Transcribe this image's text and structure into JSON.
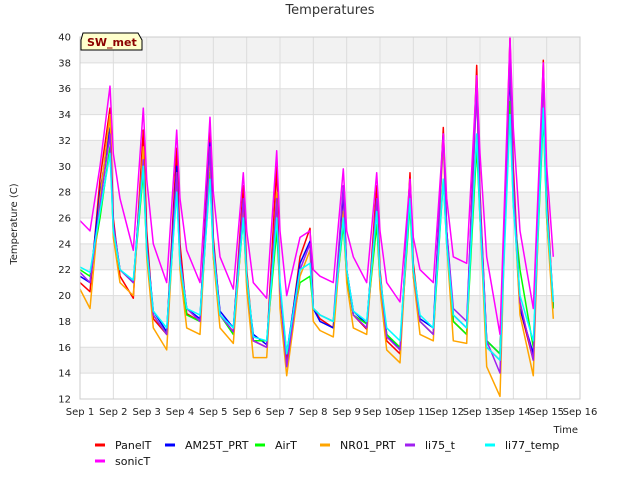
{
  "chart_data": {
    "type": "line",
    "title": "Temperatures",
    "xlabel": "Time",
    "ylabel": "Temperature (C)",
    "badge": "SW_met",
    "xlim": [
      1,
      16
    ],
    "ylim": [
      12,
      40
    ],
    "x_ticks": [
      {
        "value": 1,
        "label": "Sep 1"
      },
      {
        "value": 2,
        "label": "Sep 2"
      },
      {
        "value": 3,
        "label": "Sep 3"
      },
      {
        "value": 4,
        "label": "Sep 4"
      },
      {
        "value": 5,
        "label": "Sep 5"
      },
      {
        "value": 6,
        "label": "Sep 6"
      },
      {
        "value": 7,
        "label": "Sep 7"
      },
      {
        "value": 8,
        "label": "Sep 8"
      },
      {
        "value": 9,
        "label": "Sep 9"
      },
      {
        "value": 10,
        "label": "Sep 10"
      },
      {
        "value": 11,
        "label": "Sep 11"
      },
      {
        "value": 12,
        "label": "Sep 12"
      },
      {
        "value": 13,
        "label": "Sep 13"
      },
      {
        "value": 14,
        "label": "Sep 14"
      },
      {
        "value": 15,
        "label": "Sep 15"
      },
      {
        "value": 16,
        "label": "Sep 16"
      }
    ],
    "y_ticks": [
      12,
      14,
      16,
      18,
      20,
      22,
      24,
      26,
      28,
      30,
      32,
      34,
      36,
      38,
      40
    ],
    "grid": true,
    "background_bands": true,
    "legend_position": "bottom",
    "series": [
      {
        "name": "PanelT",
        "color": "#ff0000",
        "x": [
          1.0,
          1.3,
          1.6,
          1.9,
          2.0,
          2.2,
          2.6,
          2.9,
          3.0,
          3.2,
          3.6,
          3.9,
          4.0,
          4.2,
          4.6,
          4.9,
          5.0,
          5.2,
          5.6,
          5.9,
          6.0,
          6.2,
          6.6,
          6.9,
          7.0,
          7.2,
          7.6,
          7.9,
          8.0,
          8.2,
          8.6,
          8.9,
          9.0,
          9.2,
          9.6,
          9.9,
          10.0,
          10.2,
          10.6,
          10.9,
          11.0,
          11.2,
          11.6,
          11.9,
          12.0,
          12.2,
          12.6,
          12.9,
          13.0,
          13.2,
          13.6,
          13.9,
          14.0,
          14.2,
          14.6,
          14.9,
          15.0,
          15.2
        ],
        "y": [
          21.0,
          20.3,
          29.0,
          34.5,
          26.0,
          21.5,
          19.8,
          32.8,
          25.0,
          18.2,
          17.0,
          31.4,
          24.0,
          18.6,
          18.0,
          33.0,
          24.5,
          18.5,
          17.2,
          28.5,
          22.0,
          16.5,
          16.0,
          30.0,
          20.0,
          15.0,
          23.0,
          25.2,
          19.0,
          18.2,
          17.5,
          28.0,
          22.0,
          18.5,
          17.4,
          28.5,
          22.0,
          16.5,
          15.5,
          29.5,
          22.5,
          18.0,
          17.0,
          33.0,
          25.0,
          18.0,
          17.0,
          37.8,
          28.0,
          16.0,
          15.0,
          39.9,
          30.0,
          19.0,
          15.0,
          38.2,
          28.0,
          19.0
        ]
      },
      {
        "name": "AM25T_PRT",
        "color": "#0000ff",
        "x": [
          1.0,
          1.3,
          1.6,
          1.9,
          2.0,
          2.2,
          2.6,
          2.9,
          3.0,
          3.2,
          3.6,
          3.9,
          4.0,
          4.2,
          4.6,
          4.9,
          5.0,
          5.2,
          5.6,
          5.9,
          6.0,
          6.2,
          6.6,
          6.9,
          7.0,
          7.2,
          7.6,
          7.9,
          8.0,
          8.2,
          8.6,
          8.9,
          9.0,
          9.2,
          9.6,
          9.9,
          10.0,
          10.2,
          10.6,
          10.9,
          11.0,
          11.2,
          11.6,
          11.9,
          12.0,
          12.2,
          12.6,
          12.9,
          13.0,
          13.2,
          13.6,
          13.9,
          14.0,
          14.2,
          14.6,
          14.9,
          15.0,
          15.2
        ],
        "y": [
          21.5,
          21.0,
          28.0,
          33.0,
          25.5,
          22.0,
          21.0,
          31.0,
          24.0,
          18.8,
          17.2,
          30.0,
          23.0,
          19.0,
          18.2,
          31.8,
          24.0,
          18.8,
          17.5,
          27.2,
          21.0,
          17.0,
          16.2,
          27.5,
          20.0,
          15.5,
          22.5,
          24.2,
          19.0,
          18.0,
          17.5,
          28.0,
          22.0,
          18.8,
          17.8,
          27.2,
          21.5,
          17.0,
          15.8,
          28.5,
          22.0,
          18.2,
          17.5,
          32.5,
          25.0,
          18.5,
          17.5,
          36.5,
          27.0,
          16.5,
          15.5,
          37.5,
          28.0,
          19.0,
          15.5,
          37.0,
          27.0,
          19.0
        ]
      },
      {
        "name": "AirT",
        "color": "#00ff00",
        "x": [
          1.0,
          1.3,
          1.6,
          1.9,
          2.0,
          2.2,
          2.6,
          2.9,
          3.0,
          3.2,
          3.6,
          3.9,
          4.0,
          4.2,
          4.6,
          4.9,
          5.0,
          5.2,
          5.6,
          5.9,
          6.0,
          6.2,
          6.6,
          6.9,
          7.0,
          7.2,
          7.6,
          7.9,
          8.0,
          8.2,
          8.6,
          8.9,
          9.0,
          9.2,
          9.6,
          9.9,
          10.0,
          10.2,
          10.6,
          10.9,
          11.0,
          11.2,
          11.6,
          11.9,
          12.0,
          12.2,
          12.6,
          12.9,
          13.0,
          13.2,
          13.6,
          13.9,
          14.0,
          14.2,
          14.6,
          14.9,
          15.0,
          15.2
        ],
        "y": [
          22.0,
          21.5,
          26.0,
          31.5,
          25.0,
          22.0,
          21.0,
          29.5,
          23.5,
          18.5,
          17.0,
          28.5,
          22.5,
          18.5,
          18.0,
          29.5,
          23.0,
          18.5,
          17.0,
          26.0,
          21.0,
          16.5,
          16.5,
          25.0,
          20.5,
          15.5,
          21.0,
          21.5,
          19.0,
          18.5,
          18.0,
          25.5,
          21.5,
          18.5,
          17.8,
          25.5,
          21.0,
          17.0,
          16.0,
          27.0,
          21.5,
          18.0,
          17.0,
          29.0,
          24.0,
          18.0,
          17.0,
          31.5,
          26.0,
          16.5,
          15.5,
          35.0,
          27.0,
          22.0,
          16.0,
          34.0,
          26.0,
          19.0
        ]
      },
      {
        "name": "NR01_PRT",
        "color": "#ffa500",
        "x": [
          1.0,
          1.3,
          1.6,
          1.9,
          2.0,
          2.2,
          2.6,
          2.9,
          3.0,
          3.2,
          3.6,
          3.9,
          4.0,
          4.2,
          4.6,
          4.9,
          5.0,
          5.2,
          5.6,
          5.9,
          6.0,
          6.2,
          6.6,
          6.9,
          7.0,
          7.2,
          7.6,
          7.9,
          8.0,
          8.2,
          8.6,
          8.9,
          9.0,
          9.2,
          9.6,
          9.9,
          10.0,
          10.2,
          10.6,
          10.9,
          11.0,
          11.2,
          11.6,
          11.9,
          12.0,
          12.2,
          12.6,
          12.9,
          13.0,
          13.2,
          13.6,
          13.9,
          14.0,
          14.2,
          14.6,
          14.9,
          15.0,
          15.2
        ],
        "y": [
          20.5,
          19.0,
          27.5,
          34.0,
          24.5,
          21.0,
          20.0,
          31.5,
          23.0,
          17.5,
          15.8,
          29.5,
          22.0,
          17.5,
          17.0,
          31.0,
          23.0,
          17.5,
          16.3,
          26.5,
          20.5,
          15.2,
          15.2,
          28.0,
          19.0,
          13.8,
          21.5,
          23.5,
          18.0,
          17.3,
          16.8,
          26.5,
          21.0,
          17.5,
          17.0,
          27.0,
          20.5,
          15.8,
          14.8,
          28.5,
          21.5,
          17.0,
          16.5,
          32.0,
          24.0,
          16.5,
          16.3,
          36.5,
          26.0,
          14.5,
          12.2,
          39.0,
          28.0,
          18.5,
          13.8,
          37.0,
          26.0,
          18.2
        ]
      },
      {
        "name": "li75_t",
        "color": "#a020f0",
        "x": [
          1.0,
          1.3,
          1.6,
          1.9,
          2.0,
          2.2,
          2.6,
          2.9,
          3.0,
          3.2,
          3.6,
          3.9,
          4.0,
          4.2,
          4.6,
          4.9,
          5.0,
          5.2,
          5.6,
          5.9,
          6.0,
          6.2,
          6.6,
          6.9,
          7.0,
          7.2,
          7.6,
          7.9,
          8.0,
          8.2,
          8.6,
          8.9,
          9.0,
          9.2,
          9.6,
          9.9,
          10.0,
          10.2,
          10.6,
          10.9,
          11.0,
          11.2,
          11.6,
          11.9,
          12.0,
          12.2,
          12.6,
          12.9,
          13.0,
          13.2,
          13.6,
          13.9,
          14.0,
          14.2,
          14.6,
          14.9,
          15.0,
          15.2
        ],
        "y": [
          21.8,
          21.0,
          27.0,
          32.5,
          25.5,
          22.0,
          21.0,
          30.5,
          24.0,
          18.5,
          17.0,
          29.5,
          23.0,
          19.0,
          18.0,
          31.5,
          24.0,
          18.5,
          17.2,
          27.5,
          21.5,
          16.5,
          16.0,
          27.5,
          20.5,
          14.5,
          22.0,
          24.0,
          19.0,
          18.5,
          18.0,
          28.5,
          22.0,
          18.5,
          17.5,
          27.5,
          21.5,
          16.8,
          15.8,
          29.0,
          22.0,
          18.0,
          17.0,
          32.5,
          25.0,
          19.0,
          18.0,
          36.0,
          27.5,
          16.5,
          14.0,
          38.5,
          29.0,
          19.5,
          15.0,
          37.0,
          27.0,
          19.5
        ]
      },
      {
        "name": "li77_temp",
        "color": "#00ffff",
        "x": [
          1.0,
          1.3,
          1.6,
          1.9,
          2.0,
          2.2,
          2.6,
          2.9,
          3.0,
          3.2,
          3.6,
          3.9,
          4.0,
          4.2,
          4.6,
          4.9,
          5.0,
          5.2,
          5.6,
          5.9,
          6.0,
          6.2,
          6.6,
          6.9,
          7.0,
          7.2,
          7.6,
          7.9,
          8.0,
          8.2,
          8.6,
          8.9,
          9.0,
          9.2,
          9.6,
          9.9,
          10.0,
          10.2,
          10.6,
          10.9,
          11.0,
          11.2,
          11.6,
          11.9,
          12.0,
          12.2,
          12.6,
          12.9,
          13.0,
          13.2,
          13.6,
          13.9,
          14.0,
          14.2,
          14.6,
          14.9,
          15.0,
          15.2
        ],
        "y": [
          22.2,
          21.8,
          26.5,
          31.0,
          25.0,
          22.0,
          21.2,
          30.0,
          23.5,
          18.8,
          17.5,
          28.0,
          22.5,
          19.0,
          18.5,
          29.0,
          23.5,
          18.5,
          17.5,
          26.0,
          21.5,
          16.8,
          16.5,
          26.0,
          21.0,
          15.5,
          22.0,
          22.5,
          19.0,
          18.5,
          18.0,
          26.0,
          22.0,
          18.8,
          18.0,
          26.5,
          21.5,
          17.5,
          16.5,
          27.5,
          22.0,
          18.5,
          17.5,
          29.0,
          24.0,
          18.5,
          17.5,
          32.5,
          26.0,
          16.0,
          15.0,
          34.0,
          27.0,
          20.0,
          16.5,
          34.5,
          26.5,
          19.5
        ]
      },
      {
        "name": "sonicT",
        "color": "#ff00ff",
        "x": [
          1.0,
          1.3,
          1.6,
          1.9,
          2.0,
          2.2,
          2.6,
          2.9,
          3.0,
          3.2,
          3.6,
          3.9,
          4.0,
          4.2,
          4.6,
          4.9,
          5.0,
          5.2,
          5.6,
          5.9,
          6.0,
          6.2,
          6.6,
          6.9,
          7.0,
          7.2,
          7.6,
          7.9,
          8.0,
          8.2,
          8.6,
          8.9,
          9.0,
          9.2,
          9.6,
          9.9,
          10.0,
          10.2,
          10.6,
          10.9,
          11.0,
          11.2,
          11.6,
          11.9,
          12.0,
          12.2,
          12.6,
          12.9,
          13.0,
          13.2,
          13.6,
          13.9,
          14.0,
          14.2,
          14.6,
          14.9,
          15.0,
          15.2
        ],
        "y": [
          25.8,
          25.0,
          30.0,
          36.2,
          31.0,
          27.5,
          23.5,
          34.5,
          29.0,
          24.0,
          21.0,
          32.8,
          27.5,
          23.5,
          21.0,
          33.8,
          28.0,
          23.0,
          20.5,
          29.5,
          25.0,
          21.0,
          19.8,
          31.2,
          25.0,
          20.0,
          24.5,
          25.0,
          22.0,
          21.5,
          21.0,
          29.8,
          25.0,
          23.0,
          21.0,
          29.5,
          25.0,
          21.0,
          19.5,
          29.0,
          24.5,
          22.0,
          21.0,
          32.5,
          27.5,
          23.0,
          22.5,
          37.0,
          31.0,
          23.0,
          17.0,
          40.0,
          33.0,
          25.0,
          19.0,
          38.0,
          30.0,
          23.0
        ]
      }
    ]
  }
}
